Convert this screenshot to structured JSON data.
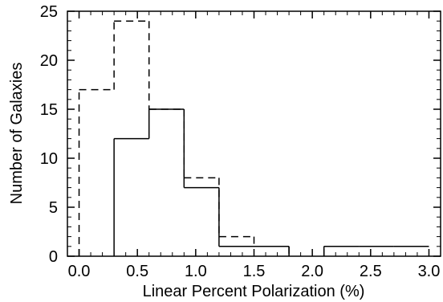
{
  "chart_data": {
    "type": "histogram",
    "title": "",
    "xlabel": "Linear Percent Polarization (%)",
    "ylabel": "Number of Galaxies",
    "xlim": [
      -0.1,
      3.1
    ],
    "ylim": [
      0,
      25
    ],
    "x_ticks": [
      "0.0",
      "0.5",
      "1.0",
      "1.5",
      "2.0",
      "2.5",
      "3.0"
    ],
    "x_tick_values": [
      0.0,
      0.5,
      1.0,
      1.5,
      2.0,
      2.5,
      3.0
    ],
    "y_ticks": [
      "0",
      "5",
      "10",
      "15",
      "20",
      "25"
    ],
    "y_tick_values": [
      0,
      5,
      10,
      15,
      20,
      25
    ],
    "bin_edges": [
      0.0,
      0.3,
      0.6,
      0.9,
      1.2,
      1.5,
      1.8,
      2.1,
      2.4,
      2.7,
      3.0
    ],
    "series": [
      {
        "style": "solid",
        "values": [
          0,
          12,
          15,
          7,
          1,
          1,
          0,
          1,
          1,
          1
        ]
      },
      {
        "style": "dashed",
        "values": [
          17,
          24,
          15,
          8,
          2,
          1,
          0,
          1,
          1,
          1
        ]
      }
    ],
    "grid": false,
    "legend": "none",
    "colors": {
      "line": "#000000",
      "background": "#ffffff"
    }
  }
}
